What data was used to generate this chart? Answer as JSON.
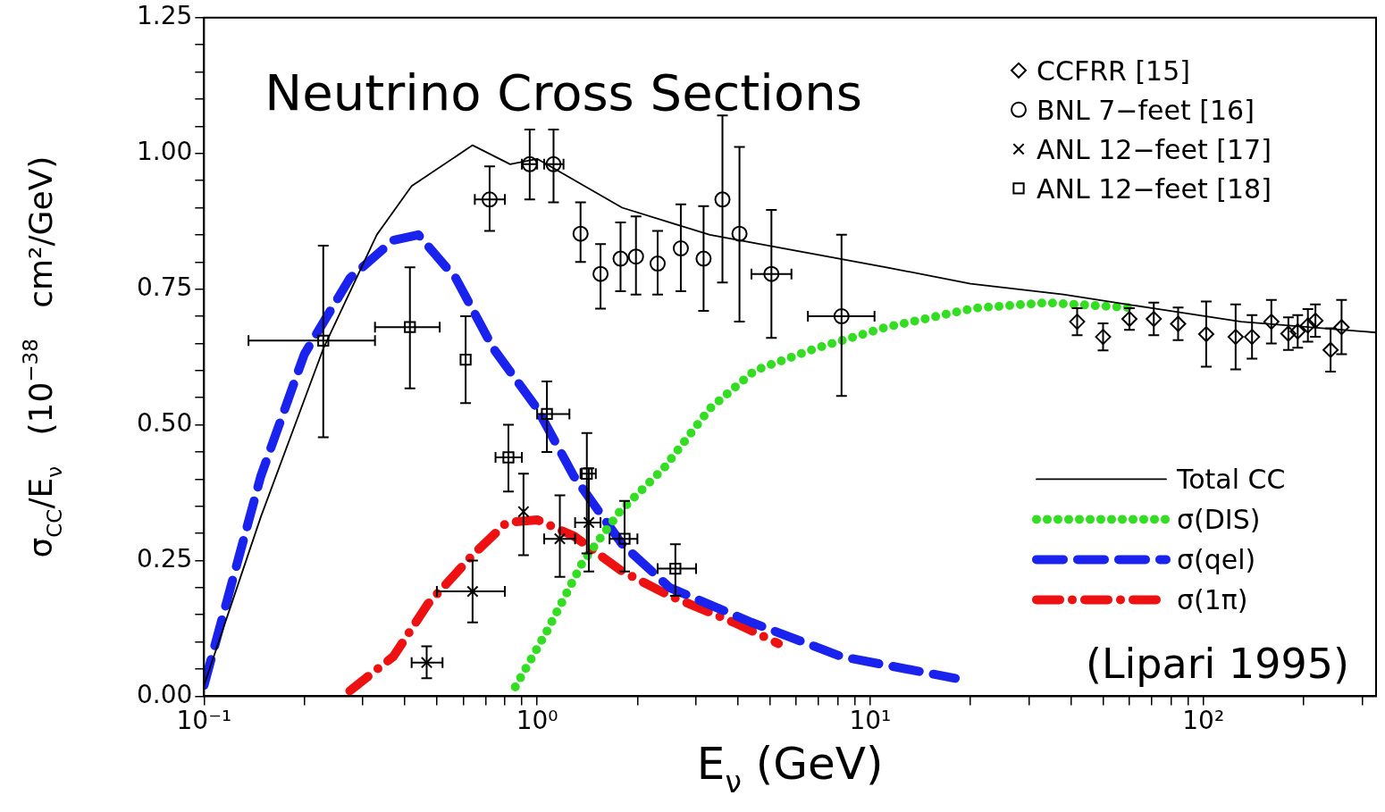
{
  "chart_data": {
    "type": "line",
    "title": "Neutrino Cross Sections",
    "xlabel": "E$_{ν}$ (GeV)",
    "ylabel": "σ$_{CC}$/E$_{ν}$   (10$^{−38}$   cm²/GeV)",
    "annotations": [
      "(Lipari 1995)"
    ],
    "log": "x",
    "legend": "right",
    "grid": false,
    "xlim": [
      0.1,
      330
    ],
    "ylim": [
      0,
      1.25
    ],
    "xticks": [
      {
        "value": 0.1,
        "label": "10⁻¹"
      },
      {
        "value": 0.2,
        "label": null
      },
      {
        "value": 0.3,
        "label": null
      },
      {
        "value": 0.4,
        "label": null
      },
      {
        "value": 0.5,
        "label": null
      },
      {
        "value": 0.6,
        "label": null
      },
      {
        "value": 0.7,
        "label": null
      },
      {
        "value": 0.8,
        "label": null
      },
      {
        "value": 0.9,
        "label": null
      },
      {
        "value": 1,
        "label": "10⁰"
      },
      {
        "value": 2,
        "label": null
      },
      {
        "value": 3,
        "label": null
      },
      {
        "value": 4,
        "label": null
      },
      {
        "value": 5,
        "label": null
      },
      {
        "value": 6,
        "label": null
      },
      {
        "value": 7,
        "label": null
      },
      {
        "value": 8,
        "label": null
      },
      {
        "value": 9,
        "label": null
      },
      {
        "value": 10,
        "label": "10¹"
      },
      {
        "value": 20,
        "label": null
      },
      {
        "value": 30,
        "label": null
      },
      {
        "value": 40,
        "label": null
      },
      {
        "value": 50,
        "label": null
      },
      {
        "value": 60,
        "label": null
      },
      {
        "value": 70,
        "label": null
      },
      {
        "value": 80,
        "label": null
      },
      {
        "value": 90,
        "label": null
      },
      {
        "value": 100,
        "label": "10²"
      },
      {
        "value": 200,
        "label": null
      },
      {
        "value": 300,
        "label": null
      }
    ],
    "yticks": [
      {
        "value": 0,
        "label": "0.00"
      },
      {
        "value": 0.05,
        "label": null
      },
      {
        "value": 0.1,
        "label": null
      },
      {
        "value": 0.15,
        "label": null
      },
      {
        "value": 0.2,
        "label": null
      },
      {
        "value": 0.25,
        "label": "0.25"
      },
      {
        "value": 0.3,
        "label": null
      },
      {
        "value": 0.35,
        "label": null
      },
      {
        "value": 0.4,
        "label": null
      },
      {
        "value": 0.45,
        "label": null
      },
      {
        "value": 0.5,
        "label": "0.50"
      },
      {
        "value": 0.55,
        "label": null
      },
      {
        "value": 0.6,
        "label": null
      },
      {
        "value": 0.65,
        "label": null
      },
      {
        "value": 0.7,
        "label": null
      },
      {
        "value": 0.75,
        "label": "0.75"
      },
      {
        "value": 0.8,
        "label": null
      },
      {
        "value": 0.85,
        "label": null
      },
      {
        "value": 0.9,
        "label": null
      },
      {
        "value": 0.95,
        "label": null
      },
      {
        "value": 1,
        "label": "1.00"
      },
      {
        "value": 1.05,
        "label": null
      },
      {
        "value": 1.1,
        "label": null
      },
      {
        "value": 1.15,
        "label": null
      },
      {
        "value": 1.2,
        "label": null
      },
      {
        "value": 1.25,
        "label": "1.25"
      }
    ],
    "series": [
      {
        "name": "Total CC",
        "line_style": "solid",
        "color": "#000000",
        "x": [
          0.1,
          0.148,
          0.228,
          0.33,
          0.42,
          0.64,
          0.83,
          1.0,
          1.8,
          3.3,
          11.2,
          20,
          38,
          70,
          130,
          330
        ],
        "values": [
          0.02,
          0.33,
          0.64,
          0.85,
          0.94,
          1.015,
          0.98,
          0.99,
          0.9,
          0.85,
          0.79,
          0.76,
          0.74,
          0.715,
          0.69,
          0.67
        ]
      },
      {
        "name": "σ(DIS)",
        "line_style": "dotted",
        "color": "#33dd22",
        "x": [
          0.86,
          1.07,
          1.37,
          1.77,
          2.4,
          3.3,
          4.5,
          6.8,
          11.2,
          20.6,
          34,
          63
        ],
        "values": [
          0.017,
          0.12,
          0.247,
          0.34,
          0.42,
          0.53,
          0.6,
          0.64,
          0.68,
          0.715,
          0.725,
          0.715
        ]
      },
      {
        "name": "σ(qel)",
        "line_style": "dashed",
        "color": "#1a22ee",
        "x": [
          0.1,
          0.148,
          0.2,
          0.274,
          0.37,
          0.44,
          0.57,
          0.74,
          1.0,
          1.29,
          1.8,
          2.5,
          4.4,
          8.2,
          18
        ],
        "values": [
          0.02,
          0.405,
          0.63,
          0.77,
          0.84,
          0.85,
          0.77,
          0.64,
          0.53,
          0.405,
          0.28,
          0.2,
          0.136,
          0.073,
          0.033
        ]
      },
      {
        "name": "σ(1π)",
        "line_style": "dashdot",
        "color": "#ee1111",
        "x": [
          0.274,
          0.37,
          0.47,
          0.64,
          0.81,
          1.0,
          1.29,
          1.8,
          2.5,
          3.9,
          5.3
        ],
        "values": [
          0.01,
          0.073,
          0.17,
          0.26,
          0.32,
          0.325,
          0.295,
          0.23,
          0.185,
          0.136,
          0.097
        ]
      },
      {
        "name": "CCFRR [15]",
        "type": "scatter",
        "marker": "diamond",
        "color": "#000000",
        "x": [
          41.8,
          50,
          60,
          71,
          84,
          102,
          125,
          140,
          160,
          180,
          192,
          206,
          217,
          241,
          260
        ],
        "values": [
          0.69,
          0.662,
          0.695,
          0.695,
          0.686,
          0.667,
          0.662,
          0.662,
          0.69,
          0.668,
          0.672,
          0.683,
          0.692,
          0.638,
          0.68
        ],
        "errors": [
          0.025,
          0.025,
          0.02,
          0.03,
          0.03,
          0.06,
          0.06,
          0.04,
          0.04,
          0.03,
          0.03,
          0.03,
          0.03,
          0.04,
          0.05
        ]
      },
      {
        "name": "BNL 7−feet [16]",
        "type": "scatter",
        "marker": "circle",
        "color": "#000000",
        "x": [
          0.72,
          0.95,
          1.12,
          1.35,
          1.55,
          1.78,
          1.98,
          2.3,
          2.7,
          3.16,
          3.6,
          4.05,
          5.05,
          8.2
        ],
        "values": [
          0.915,
          0.98,
          0.98,
          0.852,
          0.778,
          0.806,
          0.81,
          0.797,
          0.825,
          0.806,
          0.915,
          0.852,
          0.778,
          0.7
        ],
        "errors": [
          [
            0.857,
            0.976
          ],
          [
            0.915,
            1.044
          ],
          [
            0.91,
            1.044
          ],
          [
            0.8,
            0.91
          ],
          [
            0.714,
            0.833
          ],
          [
            0.746,
            0.873
          ],
          [
            0.74,
            0.884
          ],
          [
            0.74,
            0.857
          ],
          [
            0.746,
            0.906
          ],
          [
            0.71,
            0.903
          ],
          [
            0.762,
            1.07
          ],
          [
            0.69,
            1.012
          ],
          [
            0.66,
            0.896
          ],
          [
            0.553,
            0.85
          ]
        ],
        "xerrors": [
          [
            0.65,
            0.8
          ],
          [
            0.9,
            1.0
          ],
          [
            1.05,
            1.2
          ],
          null,
          null,
          null,
          null,
          null,
          null,
          null,
          null,
          null,
          [
            4.4,
            5.8
          ],
          [
            6.5,
            10.3
          ]
        ]
      },
      {
        "name": "ANL 12−feet [17]",
        "type": "scatter",
        "marker": "cross",
        "color": "#000000",
        "x": [
          0.466,
          0.64,
          0.91,
          1.17,
          1.43
        ],
        "values": [
          0.062,
          0.193,
          0.34,
          0.29,
          0.32
        ],
        "errors": [
          [
            0.033,
            0.092
          ],
          [
            0.136,
            0.25
          ],
          [
            0.26,
            0.41
          ],
          [
            0.22,
            0.37
          ],
          [
            0.23,
            0.42
          ]
        ],
        "xerrors": [
          [
            0.42,
            0.52
          ],
          [
            0.5,
            0.8
          ],
          null,
          [
            1.05,
            1.3
          ],
          [
            1.3,
            1.55
          ]
        ]
      },
      {
        "name": "ANL 12−feet [18]",
        "type": "scatter",
        "marker": "square",
        "color": "#000000",
        "x": [
          0.228,
          0.415,
          0.61,
          0.82,
          1.07,
          1.41,
          1.83,
          2.6
        ],
        "values": [
          0.655,
          0.68,
          0.62,
          0.44,
          0.52,
          0.41,
          0.29,
          0.235
        ],
        "errors": [
          [
            0.477,
            0.83
          ],
          [
            0.567,
            0.79
          ],
          [
            0.54,
            0.7
          ],
          [
            0.377,
            0.5
          ],
          [
            0.45,
            0.58
          ],
          [
            0.263,
            0.485
          ],
          [
            0.23,
            0.36
          ],
          [
            0.185,
            0.28
          ]
        ],
        "xerrors": [
          [
            0.136,
            0.326
          ],
          [
            0.326,
            0.51
          ],
          null,
          [
            0.75,
            0.9
          ],
          [
            1.0,
            1.25
          ],
          [
            1.35,
            1.5
          ],
          [
            1.65,
            2.0
          ],
          [
            2.3,
            3.0
          ]
        ]
      }
    ]
  }
}
